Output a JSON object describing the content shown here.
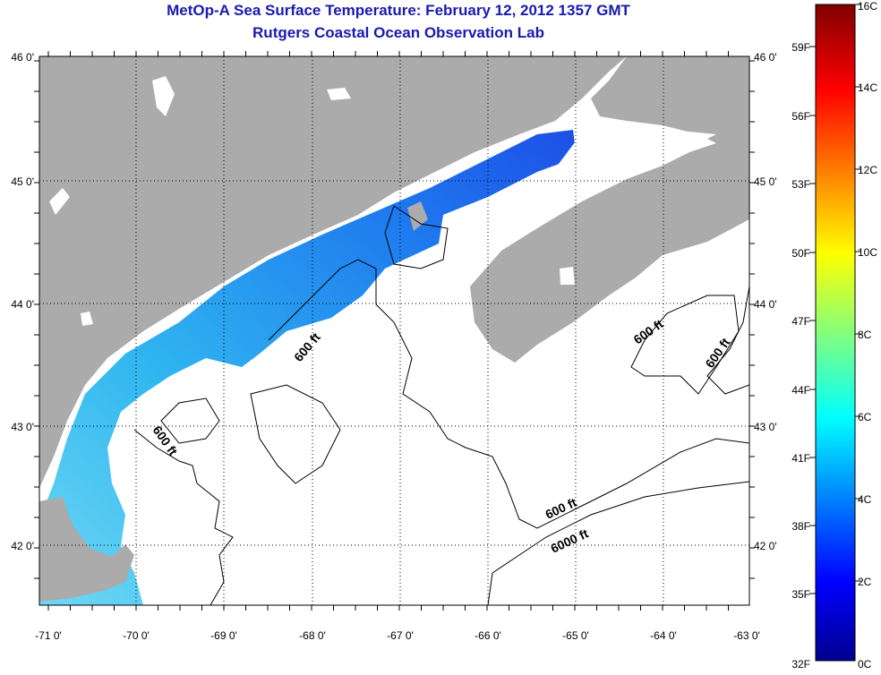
{
  "title_line1": "MetOp-A Sea Surface Temperature:  February 12, 2012 1357 GMT",
  "title_line2": "Rutgers Coastal Ocean Observation Lab",
  "lat_labels": [
    "46 0'",
    "45 0'",
    "44 0'",
    "43 0'",
    "42 0'"
  ],
  "lon_labels": [
    "-71 0'",
    "-70 0'",
    "-69 0'",
    "-68 0'",
    "-67 0'",
    "-66 0'",
    "-65 0'",
    "-64 0'",
    "-63 0'"
  ],
  "contour_labels": [
    "600 ft",
    "600 ft",
    "600 ft",
    "600 ft",
    "600 ft",
    "6000 ft"
  ],
  "colorbar": {
    "celsius_labels": [
      "16C",
      "14C",
      "12C",
      "10C",
      "8C",
      "6C",
      "4C",
      "2C",
      "0C"
    ],
    "fahrenheit_labels": [
      "59F",
      "56F",
      "53F",
      "50F",
      "47F",
      "44F",
      "41F",
      "38F",
      "35F",
      "32F"
    ]
  },
  "colors": {
    "title": "#1a1ab0",
    "land": "#ababab",
    "ocean": "#ffffff"
  }
}
